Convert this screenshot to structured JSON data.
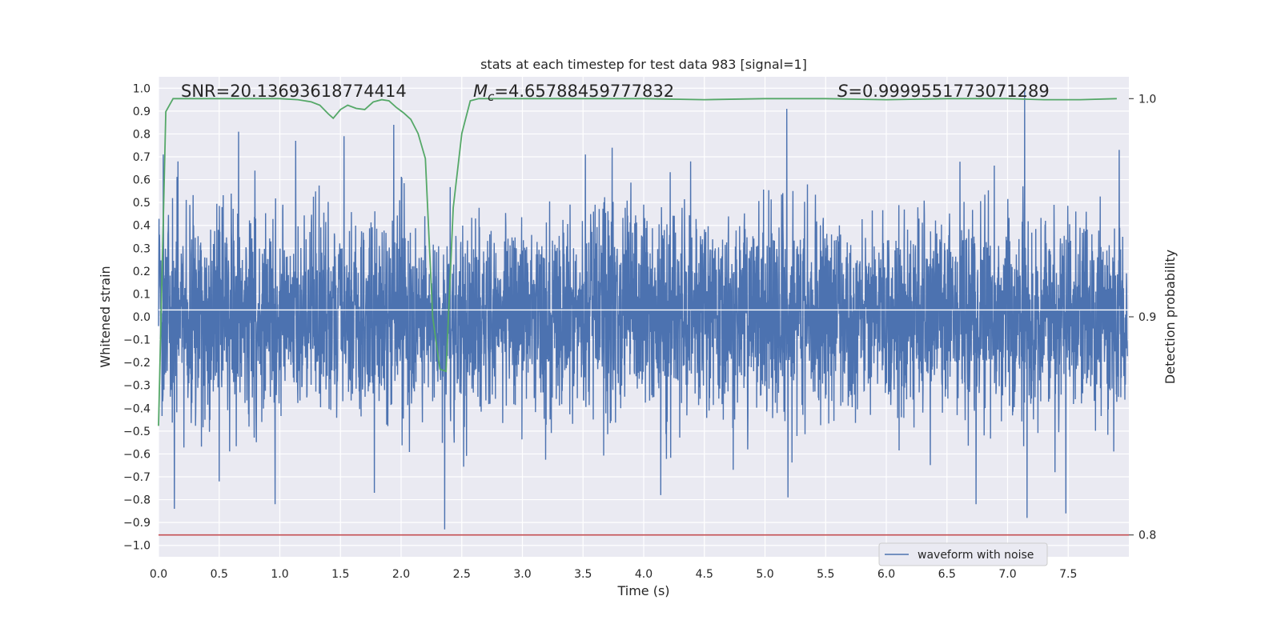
{
  "chart_data": {
    "type": "line",
    "title": "stats at each timestep for test data 983 [signal=1]",
    "xlabel": "Time (s)",
    "ylabel": "Whitened strain",
    "y2label": "Detection probability",
    "xlim": [
      0.0,
      8.0
    ],
    "ylim": [
      -1.05,
      1.05
    ],
    "y2lim": [
      0.79,
      1.01
    ],
    "x_ticks": [
      "0.0",
      "0.5",
      "1.0",
      "1.5",
      "2.0",
      "2.5",
      "3.0",
      "3.5",
      "4.0",
      "4.5",
      "5.0",
      "5.5",
      "6.0",
      "6.5",
      "7.0",
      "7.5"
    ],
    "y_ticks": [
      "1.0",
      "0.9",
      "0.8",
      "0.7",
      "0.6",
      "0.5",
      "0.4",
      "0.3",
      "0.2",
      "0.1",
      "0.0",
      "−0.1",
      "−0.2",
      "−0.3",
      "−0.4",
      "−0.5",
      "−0.6",
      "−0.7",
      "−0.8",
      "−0.9",
      "−1.0"
    ],
    "y2_ticks": [
      "1.0",
      "0.9",
      "0.8"
    ],
    "grid": true,
    "legend": {
      "placement": "lower-center-right",
      "entries": [
        "waveform with noise"
      ]
    },
    "annotations": {
      "snr": "SNR=20.13693618774414",
      "mc_symbol": "M",
      "mc_sub": "c",
      "mc_value": "=4.65788459777832",
      "s_symbol": "S",
      "s_value": "=0.9999551773071289"
    },
    "threshold": {
      "axis": "y2",
      "value": 0.8,
      "color": "#c44e52"
    },
    "series": [
      {
        "name": "waveform with noise",
        "axis": "y",
        "color": "#4c72b0",
        "sample_rate": 512,
        "amplitude_envelope": 0.4,
        "peaks": [
          {
            "x": 0.04,
            "y": 0.71
          },
          {
            "x": 0.13,
            "y": -0.84
          },
          {
            "x": 0.16,
            "y": 0.68
          },
          {
            "x": 0.66,
            "y": 0.81
          },
          {
            "x": 0.5,
            "y": -0.72
          },
          {
            "x": 0.96,
            "y": -0.82
          },
          {
            "x": 1.13,
            "y": 0.77
          },
          {
            "x": 1.53,
            "y": 0.79
          },
          {
            "x": 1.94,
            "y": 0.84
          },
          {
            "x": 1.78,
            "y": -0.77
          },
          {
            "x": 2.36,
            "y": -0.93
          },
          {
            "x": 3.52,
            "y": 0.71
          },
          {
            "x": 3.74,
            "y": 0.74
          },
          {
            "x": 4.14,
            "y": -0.78
          },
          {
            "x": 5.18,
            "y": 0.91
          },
          {
            "x": 5.19,
            "y": -0.79
          },
          {
            "x": 6.74,
            "y": -0.82
          },
          {
            "x": 7.14,
            "y": 1.0
          },
          {
            "x": 7.16,
            "y": -0.88
          },
          {
            "x": 7.48,
            "y": -0.86
          },
          {
            "x": 7.92,
            "y": 0.73
          }
        ]
      },
      {
        "name": "detection probability",
        "axis": "y2",
        "color": "#55a868",
        "x": [
          0.0,
          0.06,
          0.12,
          0.25,
          0.5,
          0.8,
          1.0,
          1.15,
          1.26,
          1.33,
          1.4,
          1.44,
          1.5,
          1.56,
          1.63,
          1.7,
          1.77,
          1.84,
          1.9,
          1.96,
          2.02,
          2.08,
          2.14,
          2.2,
          2.26,
          2.32,
          2.37,
          2.43,
          2.5,
          2.57,
          2.64,
          2.8,
          3.2,
          4.0,
          4.5,
          5.0,
          5.5,
          6.0,
          6.5,
          7.0,
          7.3,
          7.6,
          7.9
        ],
        "y": [
          0.85,
          0.994,
          1.0,
          1.0,
          1.0,
          1.0,
          1.0,
          0.9995,
          0.9985,
          0.997,
          0.993,
          0.991,
          0.995,
          0.997,
          0.9955,
          0.995,
          0.9985,
          0.9995,
          0.999,
          0.996,
          0.9935,
          0.9905,
          0.984,
          0.9725,
          0.9,
          0.876,
          0.875,
          0.95,
          0.984,
          0.999,
          1.0,
          1.0,
          1.0,
          1.0,
          0.9995,
          1.0,
          1.0,
          0.9995,
          1.0,
          1.0,
          0.9995,
          0.9995,
          1.0
        ]
      }
    ],
    "colors": {
      "plot_bg": "#eaeaf2",
      "grid": "#ffffff",
      "text": "#262626"
    }
  }
}
